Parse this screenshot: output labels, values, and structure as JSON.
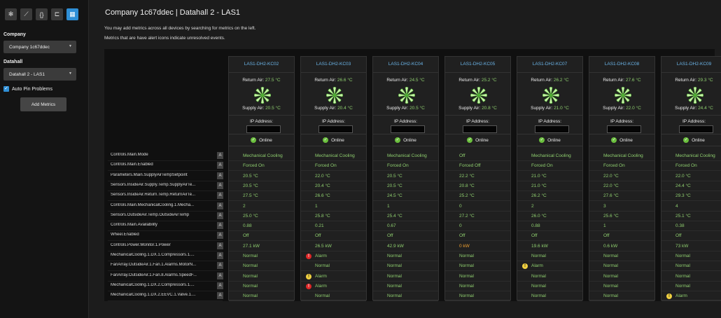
{
  "sidebar": {
    "toolbar": [
      {
        "icon": "snowflake-icon",
        "glyph": "✻"
      },
      {
        "icon": "line-chart-icon",
        "glyph": "⟋"
      },
      {
        "icon": "braces-icon",
        "glyph": "{}"
      },
      {
        "icon": "hierarchy-icon",
        "glyph": "⊏"
      },
      {
        "icon": "table-icon",
        "glyph": "▦"
      }
    ],
    "company_label": "Company",
    "company_value": "Company 1c67ddec",
    "datahall_label": "Datahall",
    "datahall_value": "Datahall 2 - LAS1",
    "auto_pin_label": "Auto Pin Problems",
    "add_metrics_label": "Add Metrics"
  },
  "header": {
    "title": "Company 1c67ddec | Datahall 2 - LAS1",
    "desc1": "You may add metrics across all devices by searching for metrics on the left.",
    "desc2": "Metrics that are have alert icons indicate unresolved events."
  },
  "labels": {
    "return_air": "Return Air:",
    "supply_air": "Supply Air:",
    "ip_address": "IP Address:",
    "online": "Online",
    "alert_badge": "A"
  },
  "metrics": [
    "Controls.Main.Mode",
    "Controls.Main.Enabled",
    "Parameters.Main.SupplyAirTempSetpoint",
    "Sensors.InsideAir.Supply.Temp.SupplyAirTe...",
    "Sensors.InsideAir.Return.Temp.ReturnAirTe...",
    "Controls.Main.MechanicalCooling.1.Mecha...",
    "Sensors.OutsideAir.Temp.OutsideAirTemp",
    "Controls.Main.Availability",
    "Wheel.Enabled",
    "Controls.Power.Monitor.1.Power",
    "MechanicalCooling.1.DX.1.Compressors.1....",
    "FanArray.OutsideAir.1.Fan.1.Alarms.MotorN...",
    "FanArray.OutsideAir.1.Fan.8.Alarms.SpeedF...",
    "MechanicalCooling.1.DX.2.Compressors.1....",
    "MechanicalCooling.1.DX.2.EEVC.1.Valve.1...."
  ],
  "devices": [
    {
      "name": "LAS1-DH2-KC02",
      "return_air": "27.5 °C",
      "supply_air": "20.5 °C",
      "values": [
        {
          "t": "Mechanical Cooling"
        },
        {
          "t": "Forced On"
        },
        {
          "t": "20.5 °C"
        },
        {
          "t": "20.5 °C"
        },
        {
          "t": "27.5 °C"
        },
        {
          "t": "2"
        },
        {
          "t": "25.0 °C"
        },
        {
          "t": "0.88"
        },
        {
          "t": "Off"
        },
        {
          "t": "27.1 kW"
        },
        {
          "t": "Normal"
        },
        {
          "t": "Normal"
        },
        {
          "t": "Normal"
        },
        {
          "t": "Normal"
        },
        {
          "t": "Normal"
        }
      ]
    },
    {
      "name": "LAS1-DH2-KC03",
      "return_air": "26.6 °C",
      "supply_air": "20.4 °C",
      "values": [
        {
          "t": "Mechanical Cooling"
        },
        {
          "t": "Forced On"
        },
        {
          "t": "22.0 °C"
        },
        {
          "t": "20.4 °C"
        },
        {
          "t": "26.6 °C"
        },
        {
          "t": "1"
        },
        {
          "t": "25.8 °C"
        },
        {
          "t": "0.21"
        },
        {
          "t": "Off"
        },
        {
          "t": "26.5 kW"
        },
        {
          "t": "Alarm",
          "icon": "red"
        },
        {
          "t": "Normal"
        },
        {
          "t": "Alarm",
          "icon": "yellow"
        },
        {
          "t": "Alarm",
          "icon": "red"
        },
        {
          "t": "Normal"
        }
      ]
    },
    {
      "name": "LAS1-DH2-KC04",
      "return_air": "24.5 °C",
      "supply_air": "20.5 °C",
      "values": [
        {
          "t": "Mechanical Cooling"
        },
        {
          "t": "Forced On"
        },
        {
          "t": "20.5 °C"
        },
        {
          "t": "20.5 °C"
        },
        {
          "t": "24.5 °C"
        },
        {
          "t": "1"
        },
        {
          "t": "25.4 °C"
        },
        {
          "t": "0.67"
        },
        {
          "t": "Off"
        },
        {
          "t": "42.9 kW"
        },
        {
          "t": "Normal"
        },
        {
          "t": "Normal"
        },
        {
          "t": "Normal"
        },
        {
          "t": "Normal"
        },
        {
          "t": "Normal"
        }
      ]
    },
    {
      "name": "LAS1-DH2-KC05",
      "return_air": "25.2 °C",
      "supply_air": "20.8 °C",
      "values": [
        {
          "t": "Off"
        },
        {
          "t": "Forced Off"
        },
        {
          "t": "22.2 °C"
        },
        {
          "t": "20.8 °C"
        },
        {
          "t": "25.2 °C"
        },
        {
          "t": "0"
        },
        {
          "t": "27.2 °C"
        },
        {
          "t": "0"
        },
        {
          "t": "Off"
        },
        {
          "t": "0 kW",
          "orange": true
        },
        {
          "t": "Normal"
        },
        {
          "t": "Normal"
        },
        {
          "t": "Normal"
        },
        {
          "t": "Normal"
        },
        {
          "t": "Normal"
        }
      ]
    },
    {
      "name": "LAS1-DH2-KC07",
      "return_air": "26.2 °C",
      "supply_air": "21.0 °C",
      "values": [
        {
          "t": "Mechanical Cooling"
        },
        {
          "t": "Forced On"
        },
        {
          "t": "21.0 °C"
        },
        {
          "t": "21.0 °C"
        },
        {
          "t": "26.2 °C"
        },
        {
          "t": "2"
        },
        {
          "t": "26.0 °C"
        },
        {
          "t": "0.88"
        },
        {
          "t": "Off"
        },
        {
          "t": "19.6 kW"
        },
        {
          "t": "Normal"
        },
        {
          "t": "Alarm",
          "icon": "yellow"
        },
        {
          "t": "Normal"
        },
        {
          "t": "Normal"
        },
        {
          "t": "Normal"
        }
      ]
    },
    {
      "name": "LAS1-DH2-KC08",
      "return_air": "27.6 °C",
      "supply_air": "22.0 °C",
      "values": [
        {
          "t": "Mechanical Cooling"
        },
        {
          "t": "Forced On"
        },
        {
          "t": "22.0 °C"
        },
        {
          "t": "22.0 °C"
        },
        {
          "t": "27.6 °C"
        },
        {
          "t": "3"
        },
        {
          "t": "25.6 °C"
        },
        {
          "t": "1"
        },
        {
          "t": "Off"
        },
        {
          "t": "0.6 kW"
        },
        {
          "t": "Normal"
        },
        {
          "t": "Normal"
        },
        {
          "t": "Normal"
        },
        {
          "t": "Normal"
        },
        {
          "t": "Normal"
        }
      ]
    },
    {
      "name": "LAS1-DH2-KC09",
      "return_air": "29.3 °C",
      "supply_air": "24.4 °C",
      "values": [
        {
          "t": "Mechanical Cooling"
        },
        {
          "t": "Forced On"
        },
        {
          "t": "22.0 °C"
        },
        {
          "t": "24.4 °C"
        },
        {
          "t": "29.3 °C"
        },
        {
          "t": "4"
        },
        {
          "t": "25.1 °C"
        },
        {
          "t": "0.38"
        },
        {
          "t": "Off"
        },
        {
          "t": "73 kW"
        },
        {
          "t": "Normal"
        },
        {
          "t": "Normal"
        },
        {
          "t": "Normal"
        },
        {
          "t": "Normal"
        },
        {
          "t": "Alarm",
          "icon": "yellow"
        }
      ]
    }
  ],
  "colors": {
    "accent": "#2f8fd6",
    "ok": "#8fcf6f",
    "device_name": "#6cb6ea",
    "alarm_red": "#e02828",
    "alarm_yellow": "#f0d040",
    "warn_orange": "#f0a030"
  }
}
